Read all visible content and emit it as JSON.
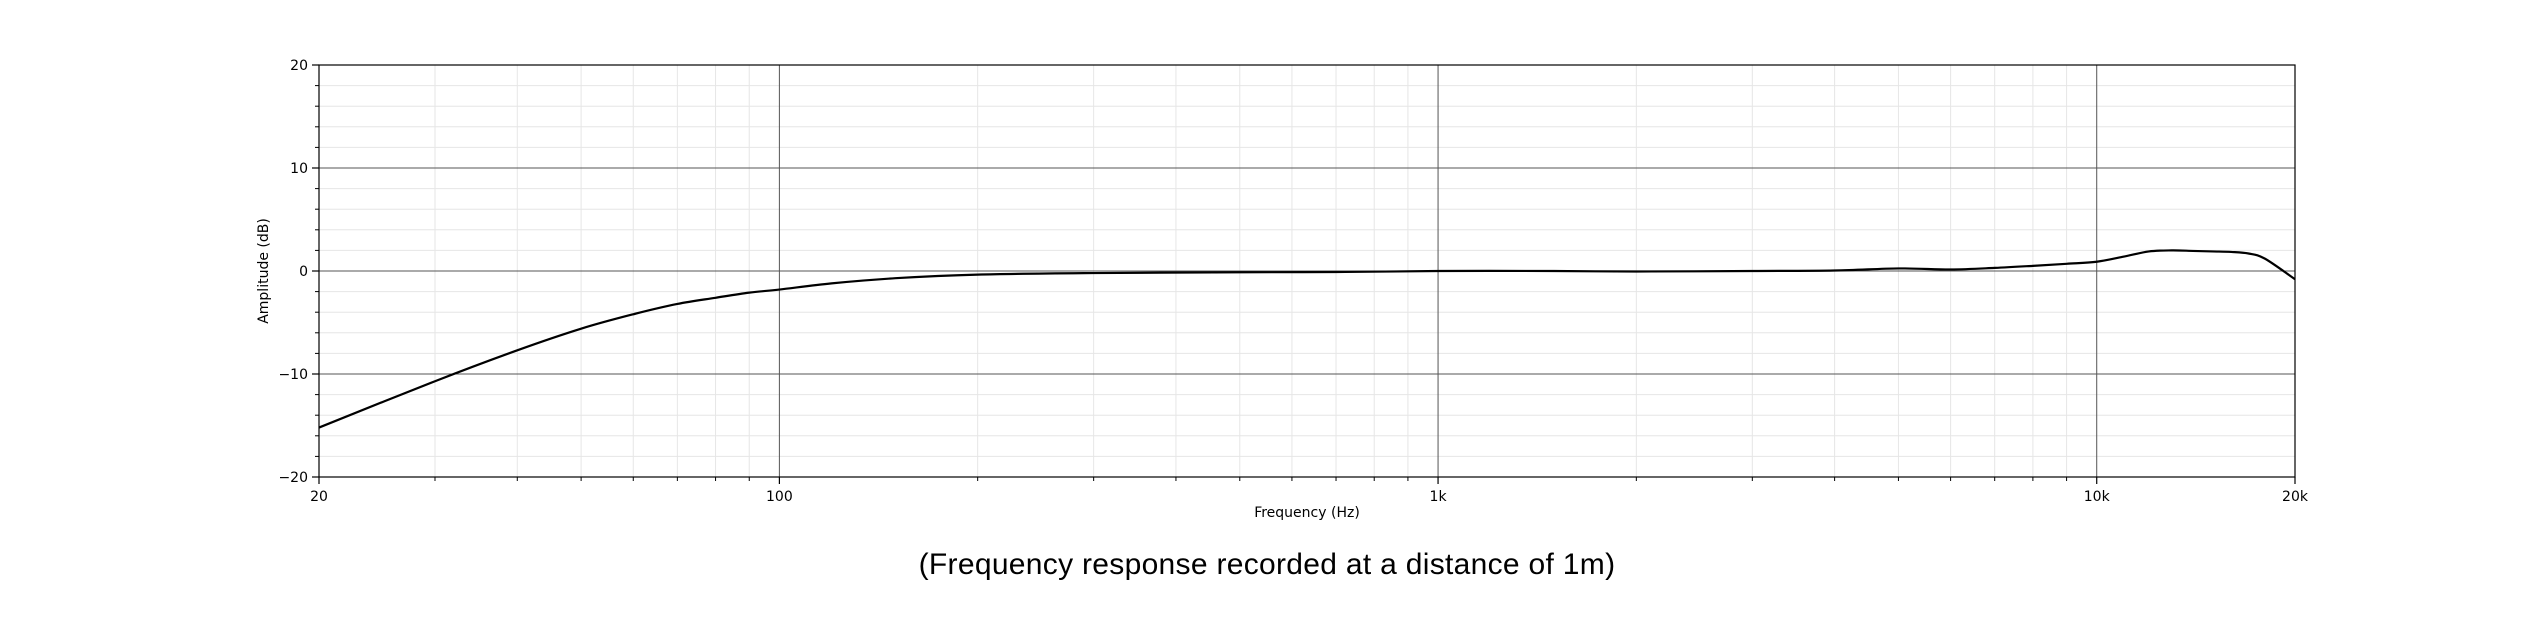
{
  "chart_data": {
    "type": "line",
    "xscale": "log",
    "xlim": [
      20,
      20000
    ],
    "ylim": [
      -20,
      20
    ],
    "xlabel": "Frequency (Hz)",
    "ylabel": "Amplitude (dB)",
    "x_ticks": [
      {
        "value": 20,
        "label": "20"
      },
      {
        "value": 100,
        "label": "100"
      },
      {
        "value": 1000,
        "label": "1k"
      },
      {
        "value": 10000,
        "label": "10k"
      },
      {
        "value": 20000,
        "label": "20k"
      }
    ],
    "y_ticks": [
      {
        "value": 20,
        "label": "20"
      },
      {
        "value": 10,
        "label": "10"
      },
      {
        "value": 0,
        "label": "0"
      },
      {
        "value": -10,
        "label": "−10"
      },
      {
        "value": -20,
        "label": "−20"
      }
    ],
    "grid": true,
    "line_color": "#000000",
    "series": [
      {
        "x": [
          20,
          30,
          40,
          50,
          60,
          70,
          80,
          90,
          100,
          120,
          150,
          200,
          300,
          500,
          700,
          1000,
          1500,
          2000,
          3000,
          4000,
          5000,
          6000,
          7000,
          8000,
          9000,
          10000,
          11000,
          12000,
          13000,
          14000,
          15000,
          16000,
          17000,
          18000,
          20000
        ],
        "y": [
          -15.2,
          -10.7,
          -7.7,
          -5.6,
          -4.2,
          -3.2,
          -2.6,
          -2.1,
          -1.8,
          -1.2,
          -0.7,
          -0.35,
          -0.2,
          -0.12,
          -0.1,
          0.0,
          0.0,
          -0.05,
          0.0,
          0.05,
          0.25,
          0.15,
          0.3,
          0.5,
          0.7,
          0.9,
          1.4,
          1.9,
          2.0,
          1.95,
          1.9,
          1.85,
          1.7,
          1.2,
          -0.8
        ]
      }
    ]
  },
  "caption": "(Frequency response recorded at a distance of 1m)"
}
